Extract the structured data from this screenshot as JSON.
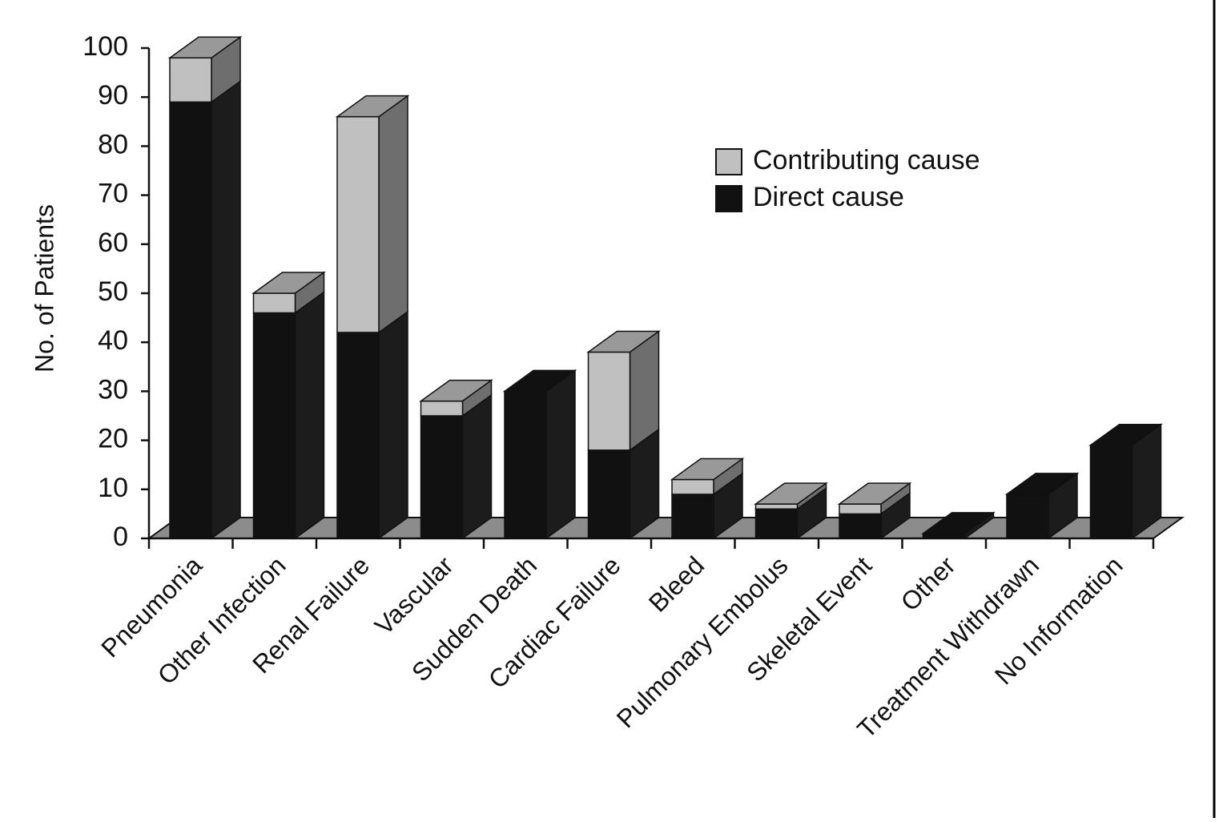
{
  "chart_data": {
    "type": "bar3d_stacked",
    "y_label": "No. of Patients",
    "categories": [
      "Pneumonia",
      "Other Infection",
      "Renal Failure",
      "Vascular",
      "Sudden Death",
      "Cardiac Failure",
      "Bleed",
      "Pulmonary Embolus",
      "Skeletal Event",
      "Other",
      "Treatment Withdrawn",
      "No Information"
    ],
    "series": [
      {
        "name": "Direct cause",
        "color": "#111111",
        "values": [
          89,
          46,
          42,
          25,
          30,
          18,
          9,
          6,
          5,
          1,
          9,
          19
        ]
      },
      {
        "name": "Contributing cause",
        "color": "#c0c0c0",
        "values": [
          9,
          4,
          44,
          3,
          0,
          20,
          3,
          1,
          2,
          0,
          0,
          0
        ]
      }
    ],
    "ylim": [
      0,
      100
    ],
    "yticks": [
      0,
      10,
      20,
      30,
      40,
      50,
      60,
      70,
      80,
      90,
      100
    ],
    "legend": "upper right"
  }
}
